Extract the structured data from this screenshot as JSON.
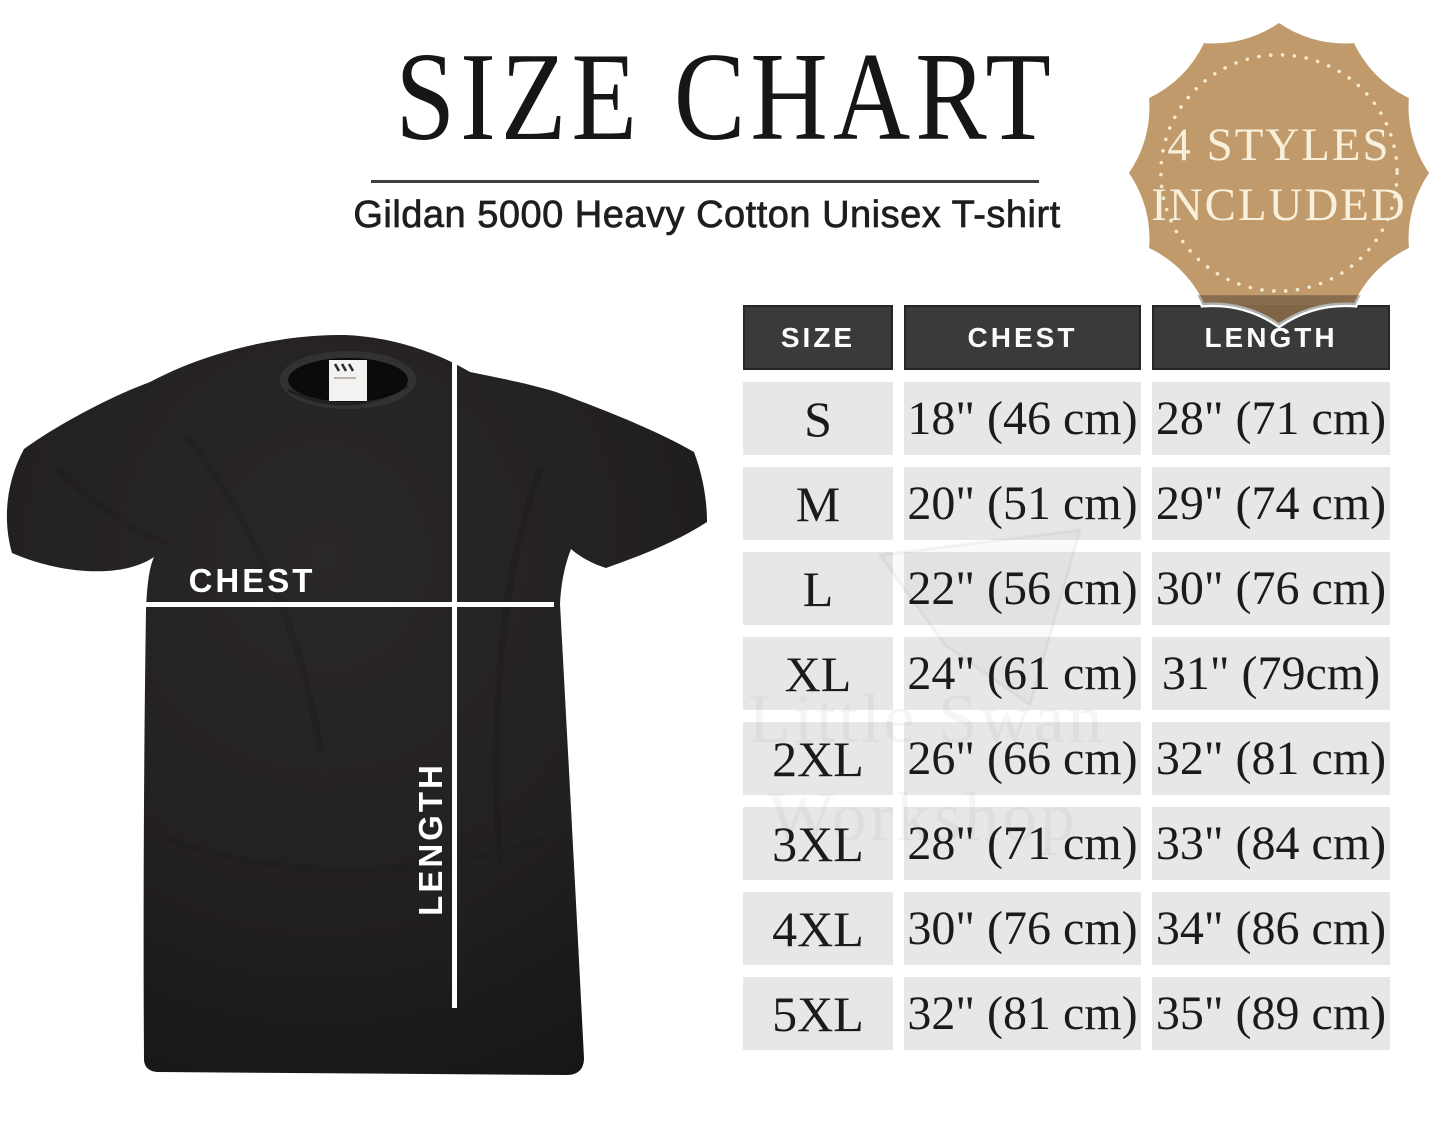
{
  "header": {
    "title": "SIZE CHART",
    "subtitle": "Gildan 5000 Heavy Cotton Unisex T-shirt"
  },
  "badge": {
    "line1": "4 STYLES",
    "line2": "INCLUDED",
    "fill_color": "#bb9260",
    "text_color": "#f8f0da",
    "dot_color": "#f3e9cf"
  },
  "shirt": {
    "chest_label": "CHEST",
    "length_label": "LENGTH",
    "shirt_color": "#232021",
    "line_color": "#ffffff"
  },
  "watermark": {
    "line1": "Little Swan",
    "line2": "Workshop"
  },
  "table": {
    "header_bg": "#3b3a3a",
    "cell_bg": "#e8e7e5",
    "columns": [
      "SIZE",
      "CHEST",
      "LENGTH"
    ],
    "rows": [
      {
        "size": "S",
        "chest": "18\" (46 cm)",
        "length": "28\" (71 cm)"
      },
      {
        "size": "M",
        "chest": "20\" (51 cm)",
        "length": "29\" (74 cm)"
      },
      {
        "size": "L",
        "chest": "22\" (56 cm)",
        "length": "30\" (76 cm)"
      },
      {
        "size": "XL",
        "chest": "24\" (61 cm)",
        "length": "31\" (79cm)"
      },
      {
        "size": "2XL",
        "chest": "26\" (66 cm)",
        "length": "32\" (81 cm)"
      },
      {
        "size": "3XL",
        "chest": "28\" (71 cm)",
        "length": "33\" (84 cm)"
      },
      {
        "size": "4XL",
        "chest": "30\" (76 cm)",
        "length": "34\" (86 cm)"
      },
      {
        "size": "5XL",
        "chest": "32\" (81 cm)",
        "length": "35\" (89 cm)"
      }
    ]
  },
  "chart_data": {
    "type": "table",
    "title": "SIZE CHART",
    "subtitle": "Gildan 5000 Heavy Cotton Unisex T-shirt",
    "columns": [
      "SIZE",
      "CHEST",
      "LENGTH"
    ],
    "rows": [
      [
        "S",
        "18\" (46 cm)",
        "28\" (71 cm)"
      ],
      [
        "M",
        "20\" (51 cm)",
        "29\" (74 cm)"
      ],
      [
        "L",
        "22\" (56 cm)",
        "30\" (76 cm)"
      ],
      [
        "XL",
        "24\" (61 cm)",
        "31\" (79cm)"
      ],
      [
        "2XL",
        "26\" (66 cm)",
        "32\" (81 cm)"
      ],
      [
        "3XL",
        "28\" (71 cm)",
        "33\" (84 cm)"
      ],
      [
        "4XL",
        "30\" (76 cm)",
        "34\" (86 cm)"
      ],
      [
        "5XL",
        "32\" (81 cm)",
        "35\" (89 cm)"
      ]
    ]
  }
}
